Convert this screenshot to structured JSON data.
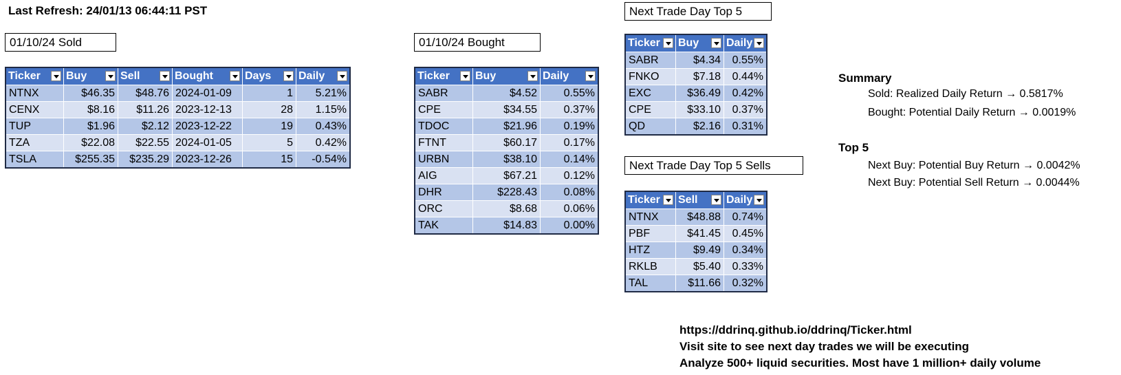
{
  "last_refresh": "Last Refresh: 24/01/13 06:44:11 PST",
  "sold": {
    "title": "01/10/24  Sold",
    "headers": [
      "Ticker",
      "Buy",
      "Sell",
      "Bought",
      "Days",
      "Daily"
    ],
    "rows": [
      [
        "NTNX",
        "$46.35",
        "$48.76",
        "2024-01-09",
        "1",
        "5.21%"
      ],
      [
        "CENX",
        "$8.16",
        "$11.26",
        "2023-12-13",
        "28",
        "1.15%"
      ],
      [
        "TUP",
        "$1.96",
        "$2.12",
        "2023-12-22",
        "19",
        "0.43%"
      ],
      [
        "TZA",
        "$22.08",
        "$22.55",
        "2024-01-05",
        "5",
        "0.42%"
      ],
      [
        "TSLA",
        "$255.35",
        "$235.29",
        "2023-12-26",
        "15",
        "-0.54%"
      ]
    ]
  },
  "bought": {
    "title": "01/10/24  Bought",
    "headers": [
      "Ticker",
      "Buy",
      "Daily"
    ],
    "rows": [
      [
        "SABR",
        "$4.52",
        "0.55%"
      ],
      [
        "CPE",
        "$34.55",
        "0.37%"
      ],
      [
        "TDOC",
        "$21.96",
        "0.19%"
      ],
      [
        "FTNT",
        "$60.17",
        "0.17%"
      ],
      [
        "URBN",
        "$38.10",
        "0.14%"
      ],
      [
        "AIG",
        "$67.21",
        "0.12%"
      ],
      [
        "DHR",
        "$228.43",
        "0.08%"
      ],
      [
        "ORC",
        "$8.68",
        "0.06%"
      ],
      [
        "TAK",
        "$14.83",
        "0.00%"
      ]
    ]
  },
  "top5_buy": {
    "title": "Next Trade Day Top 5",
    "headers": [
      "Ticker",
      "Buy",
      "Daily"
    ],
    "rows": [
      [
        "SABR",
        "$4.34",
        "0.55%"
      ],
      [
        "FNKO",
        "$7.18",
        "0.44%"
      ],
      [
        "EXC",
        "$36.49",
        "0.42%"
      ],
      [
        "CPE",
        "$33.10",
        "0.37%"
      ],
      [
        "QD",
        "$2.16",
        "0.31%"
      ]
    ]
  },
  "top5_sell": {
    "title": "Next Trade Day Top 5 Sells",
    "headers": [
      "Ticker",
      "Sell",
      "Daily"
    ],
    "rows": [
      [
        "NTNX",
        "$48.88",
        "0.74%"
      ],
      [
        "PBF",
        "$41.45",
        "0.45%"
      ],
      [
        "HTZ",
        "$9.49",
        "0.34%"
      ],
      [
        "RKLB",
        "$5.40",
        "0.33%"
      ],
      [
        "TAL",
        "$11.66",
        "0.32%"
      ]
    ]
  },
  "summary": {
    "heading": "Summary",
    "lines": [
      "Sold: Realized Daily Return → 0.5817%",
      "Bought: Potential Daily Return → 0.0019%"
    ]
  },
  "top5": {
    "heading": "Top 5",
    "lines": [
      "Next Buy: Potential Buy Return → 0.0042%",
      "Next Buy: Potential Sell Return → 0.0044%"
    ]
  },
  "footer": {
    "lines": [
      "https://ddrinq.github.io/ddrinq/Ticker.html",
      "Visit site to see next day trades we will be executing",
      "Analyze 500+ liquid securities.  Most have 1 million+ daily volume"
    ]
  }
}
